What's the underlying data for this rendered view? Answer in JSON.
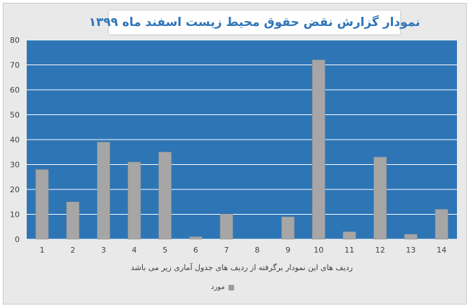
{
  "chart_data": {
    "type": "bar",
    "title": "نمودار گزارش نقض حقوق محیط زیست اسفند ماه ۱۳۹۹",
    "xlabel": "ردیف های این نمودار برگرفته از ردیف های جدول آماری زیر می باشد",
    "ylabel": "",
    "categories": [
      "1",
      "2",
      "3",
      "4",
      "5",
      "6",
      "7",
      "8",
      "9",
      "10",
      "11",
      "12",
      "13",
      "14"
    ],
    "series": [
      {
        "name": "مورد",
        "values": [
          28,
          15,
          39,
          31,
          35,
          1,
          10,
          0,
          9,
          72,
          3,
          33,
          2,
          12
        ]
      }
    ],
    "ylim": [
      0,
      80
    ],
    "yticks": [
      0,
      10,
      20,
      30,
      40,
      50,
      60,
      70,
      80
    ],
    "grid": true,
    "legend_position": "bottom",
    "colors": {
      "plot_background": "#2e75b6",
      "bar": "#a6a6a6",
      "gridline": "#ffffff",
      "title": "#2e75b6",
      "frame_background": "#e9e9e9"
    }
  }
}
